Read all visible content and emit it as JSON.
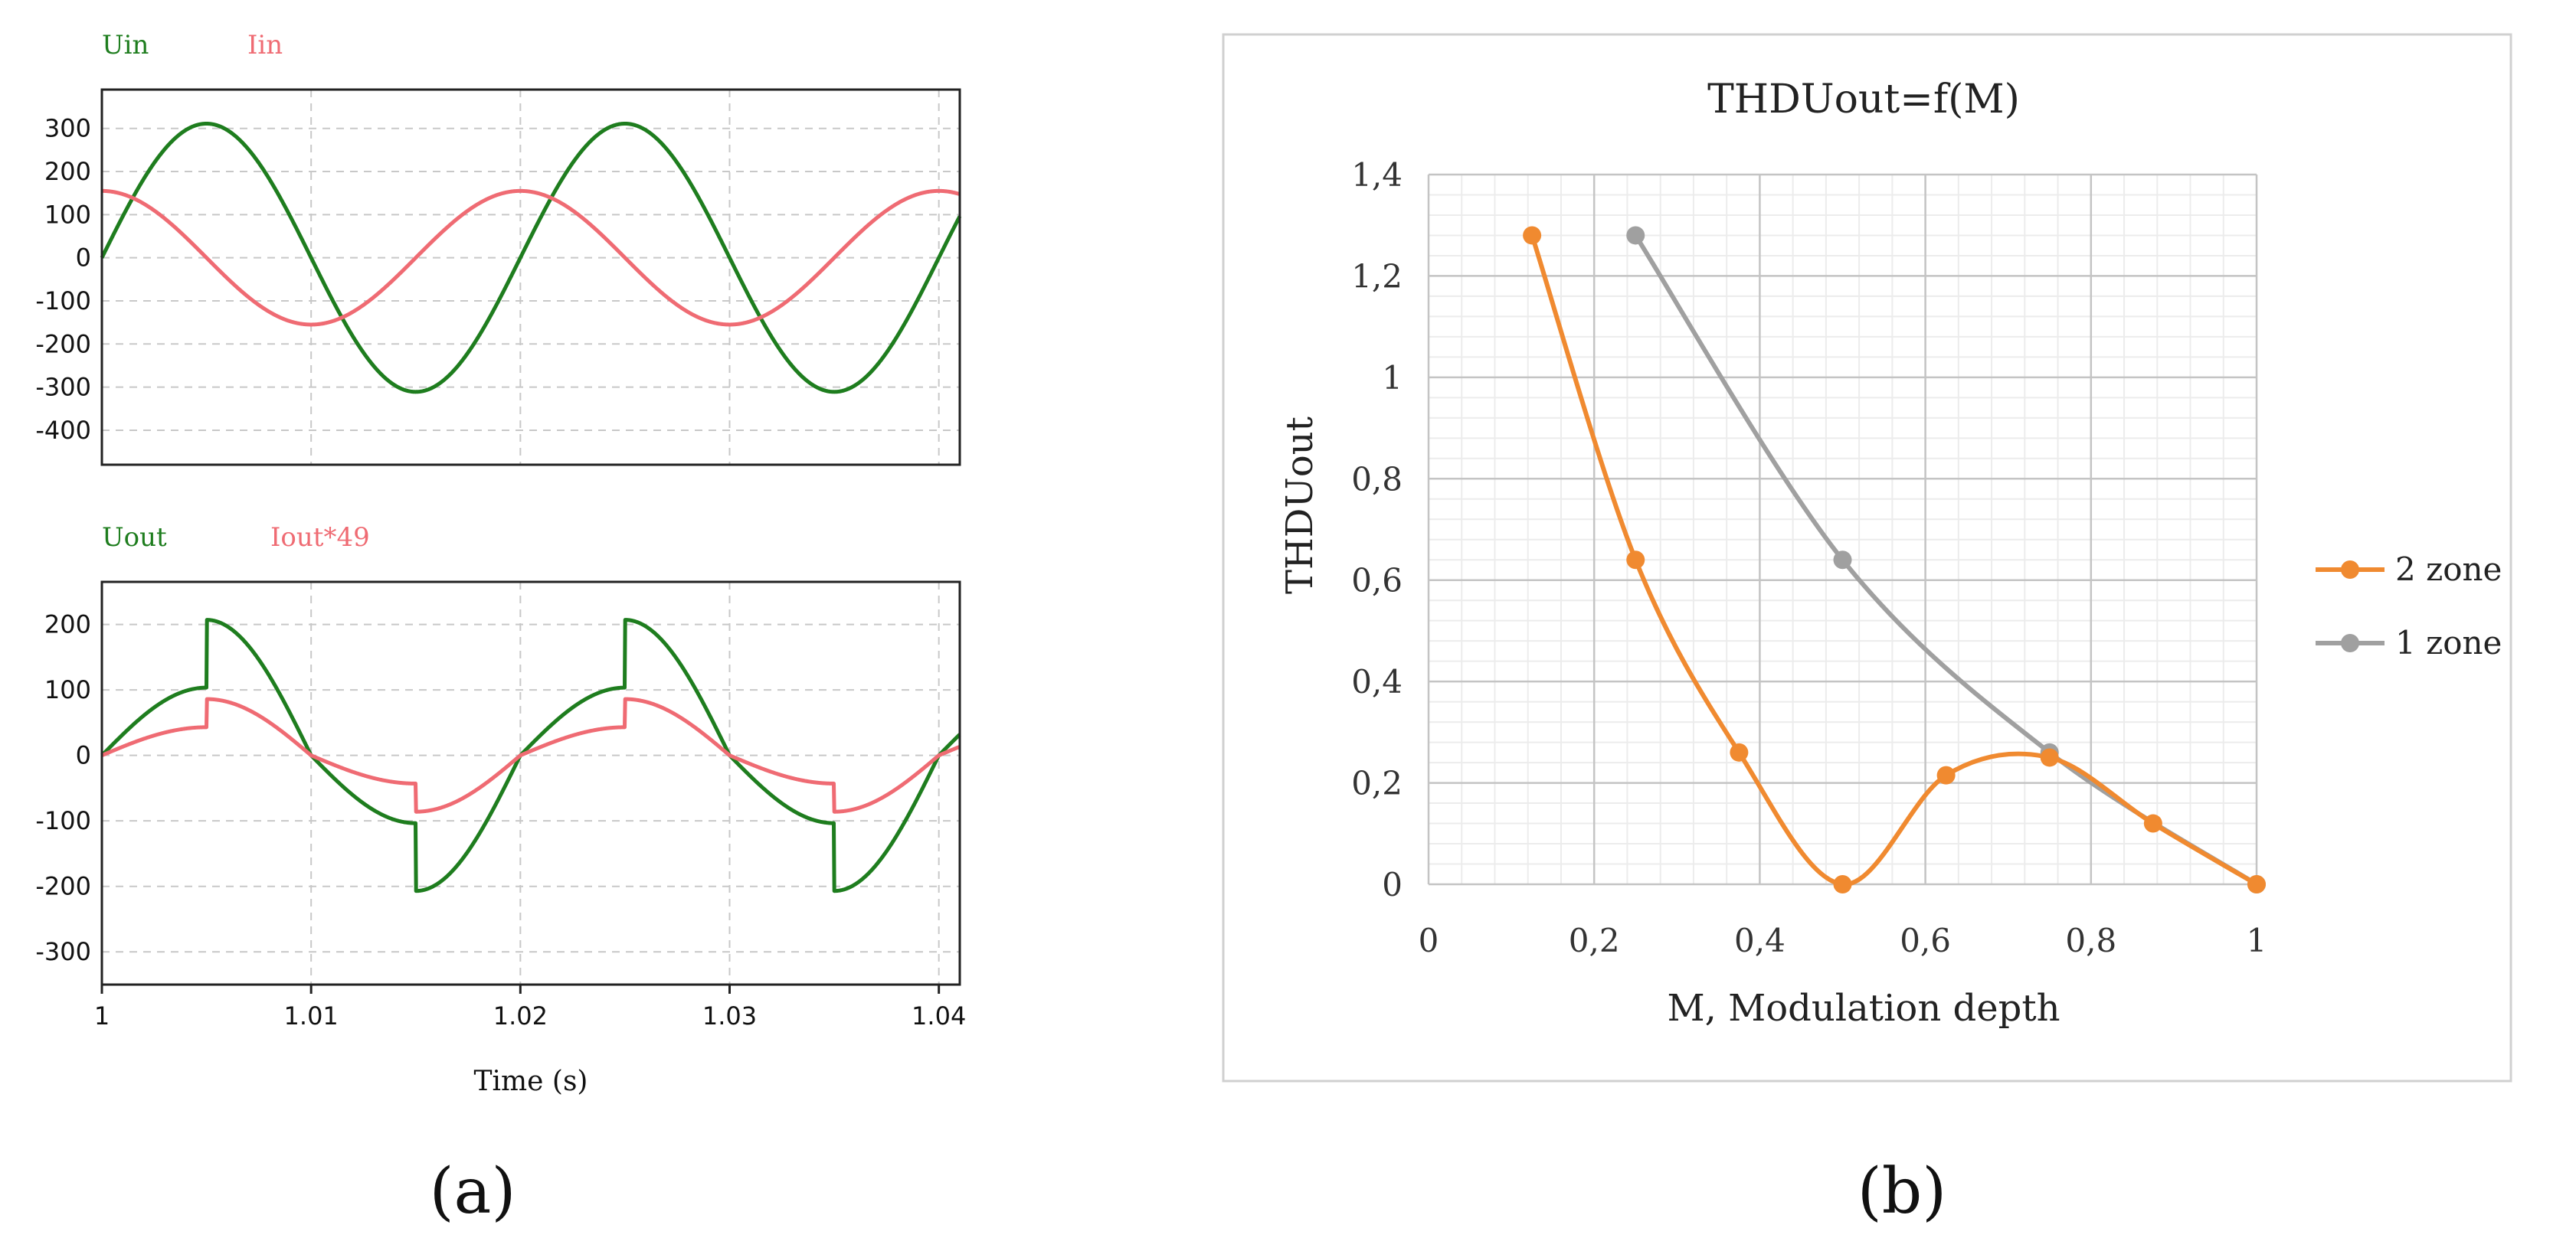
{
  "figure_labels": {
    "a": "(a)",
    "b": "(b)"
  },
  "chart_data": [
    {
      "id": "a-top",
      "type": "line",
      "title": "",
      "xlabel": "",
      "ylabel": "",
      "xlim": [
        1.0,
        1.041
      ],
      "ylim": [
        -480,
        390
      ],
      "yticks": [
        300,
        200,
        100,
        0,
        -100,
        -200,
        -300,
        -400
      ],
      "ytick_labels": [
        "300",
        "200",
        "100",
        "0",
        "-100",
        "-200",
        "-300",
        "-400"
      ],
      "xgrid": [
        1.01,
        1.02,
        1.03,
        1.04
      ],
      "grid": true,
      "series": [
        {
          "name": "Uin",
          "color": "#1e7d1e",
          "kind": "sine",
          "amplitude": 311,
          "freq_hz": 50,
          "phase_deg": 0
        },
        {
          "name": "Iin",
          "color": "#ef6b73",
          "kind": "sine",
          "amplitude": 155,
          "freq_hz": 50,
          "phase_deg": 90
        }
      ]
    },
    {
      "id": "a-bottom",
      "type": "line",
      "title": "",
      "xlabel": "Time (s)",
      "ylabel": "",
      "xlim": [
        1.0,
        1.041
      ],
      "ylim": [
        -350,
        265
      ],
      "yticks": [
        200,
        100,
        0,
        -100,
        -200,
        -300
      ],
      "ytick_labels": [
        "200",
        "100",
        "0",
        "-100",
        "-200",
        "-300"
      ],
      "xticks": [
        1.0,
        1.01,
        1.02,
        1.03,
        1.04
      ],
      "xtick_labels": [
        "1",
        "1.01",
        "1.02",
        "1.03",
        "1.04"
      ],
      "grid": true,
      "series": [
        {
          "name": "Uout",
          "color": "#1e7d1e",
          "kind": "zone-sine",
          "amplitude": 207,
          "freq_hz": 50,
          "step_ratio": 0.5
        },
        {
          "name": "Iout*49",
          "color": "#ef6b73",
          "kind": "zone-sine",
          "amplitude": 86,
          "freq_hz": 50,
          "step_ratio": 0.5
        }
      ]
    },
    {
      "id": "b",
      "type": "line",
      "title": "THDUout=f(M)",
      "xlabel": "M, Modulation depth",
      "ylabel": "THDUout",
      "xlim": [
        0,
        1
      ],
      "ylim": [
        0,
        1.4
      ],
      "xticks": [
        0,
        0.2,
        0.4,
        0.6,
        0.8,
        1
      ],
      "xtick_labels": [
        "0",
        "0,2",
        "0,4",
        "0,6",
        "0,8",
        "1"
      ],
      "yticks": [
        0,
        0.2,
        0.4,
        0.6,
        0.8,
        1,
        1.2,
        1.4
      ],
      "ytick_labels": [
        "0",
        "0,2",
        "0,4",
        "0,6",
        "0,8",
        "1",
        "1,2",
        "1,4"
      ],
      "grid": true,
      "minor_grid_step": 0.04,
      "legend_position": "right",
      "series": [
        {
          "name": "2 zone",
          "color": "#f08a30",
          "x": [
            0.125,
            0.25,
            0.375,
            0.5,
            0.625,
            0.75,
            0.875,
            1.0
          ],
          "y": [
            1.28,
            0.64,
            0.26,
            0.0,
            0.215,
            0.25,
            0.12,
            0.0
          ]
        },
        {
          "name": "1 zone",
          "color": "#a0a0a0",
          "x": [
            0.25,
            0.5,
            0.75,
            1.0
          ],
          "y": [
            1.28,
            0.64,
            0.26,
            0.0
          ]
        }
      ]
    }
  ]
}
